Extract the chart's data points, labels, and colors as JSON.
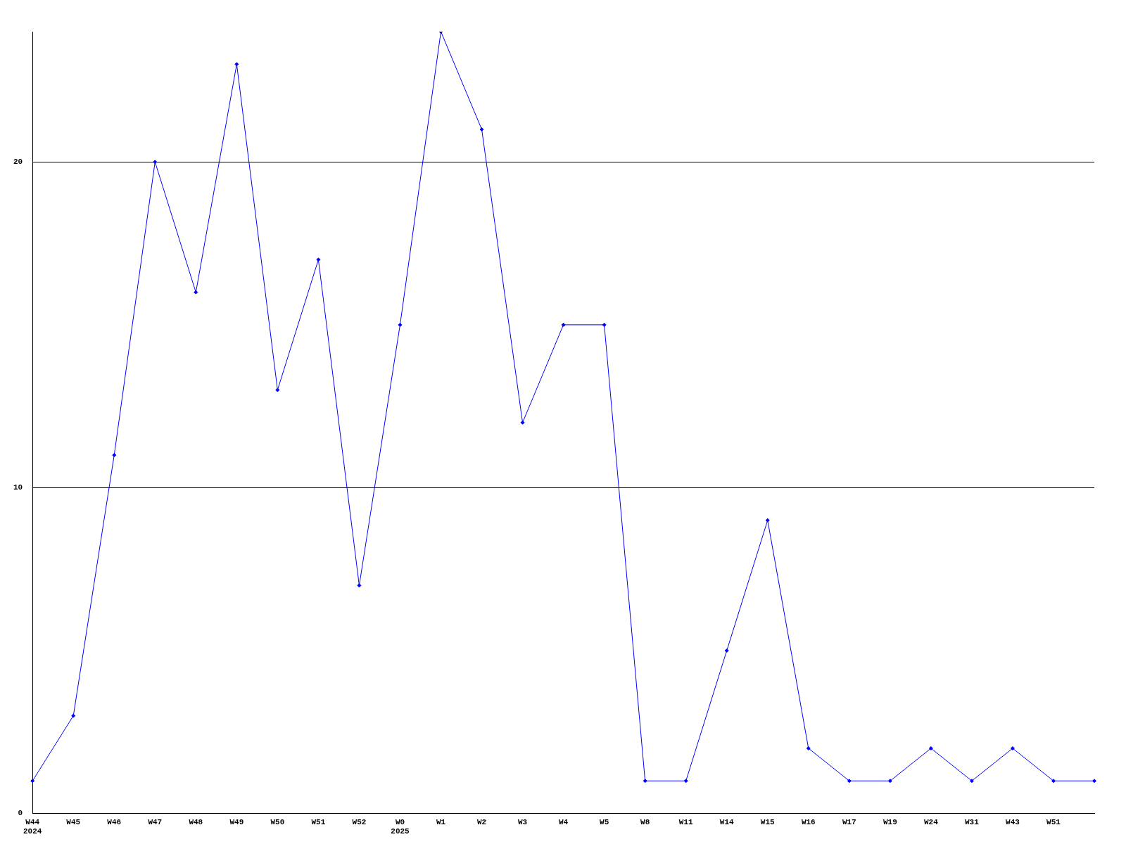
{
  "chart_data": {
    "type": "line",
    "categories": [
      "W44\n2024",
      "W45",
      "W46",
      "W47",
      "W48",
      "W49",
      "W50",
      "W51",
      "W52",
      "W0\n2025",
      "W1",
      "W2",
      "W3",
      "W4",
      "W5",
      "W8",
      "W11",
      "W14",
      "W15",
      "W16",
      "W17",
      "W19",
      "W24",
      "W31",
      "W43",
      "W51",
      null
    ],
    "series": [
      {
        "color": "#0000ff",
        "values": [
          1,
          3,
          11,
          20,
          16,
          23,
          13,
          17,
          7,
          15,
          24,
          21,
          12,
          15,
          15,
          1,
          1,
          5,
          9,
          2,
          1,
          1,
          2,
          1,
          2,
          1,
          1
        ]
      }
    ],
    "ylim": [
      0,
      24
    ],
    "yticks": [
      0,
      10,
      20
    ],
    "grid": "y",
    "legend": false,
    "marker": "diamond",
    "line_style": "solid"
  }
}
